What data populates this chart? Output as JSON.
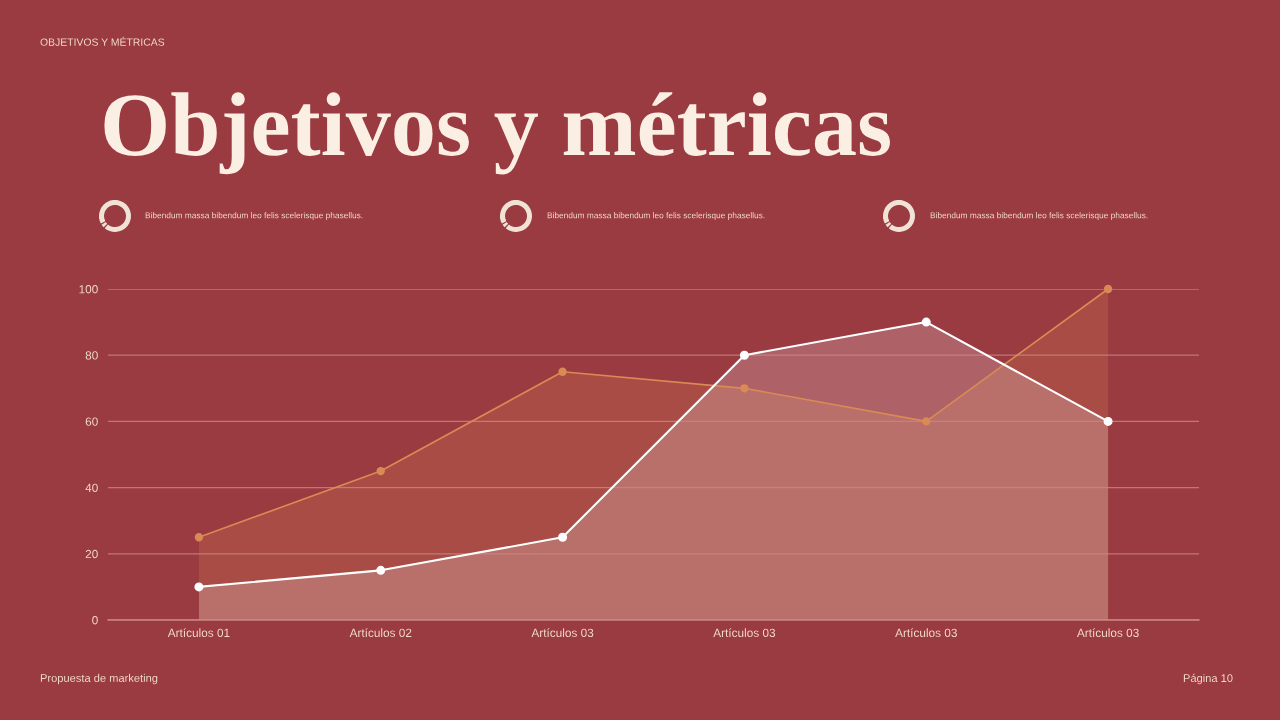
{
  "chart_data": {
    "type": "area",
    "title": "Objetivos y métricas",
    "annotations": [
      "OBJETIVOS Y MÉTRICAS",
      "Bibendum massa bibendum leo felis scelerisque phasellus.",
      "Bibendum massa bibendum leo felis scelerisque phasellus.",
      "Bibendum massa bibendum leo felis scelerisque phasellus.",
      "Propuesta de marketing",
      "Página 10"
    ],
    "categories": [
      "Artículos 01",
      "Artículos 02",
      "Artículos 03",
      "Artículos 03",
      "Artículos 03",
      "Artículos 03"
    ],
    "series": [
      {
        "color": "#d98a55",
        "values": [
          25,
          45,
          75,
          70,
          60,
          100
        ]
      },
      {
        "color": "#ffffff",
        "values": [
          10,
          15,
          25,
          80,
          90,
          60
        ]
      }
    ],
    "ylim": [
      0,
      100
    ],
    "yticks": [
      0,
      20,
      40,
      60,
      80,
      100
    ],
    "grid": "y",
    "marker": "circle",
    "line_style": "solid"
  }
}
